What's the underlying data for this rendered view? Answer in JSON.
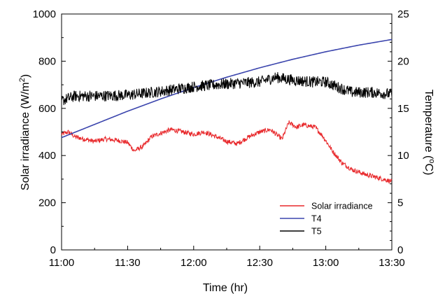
{
  "chart_data": {
    "type": "line",
    "xlabel": "Time (hr)",
    "ylabel_left": "Solar irradiance (W/m",
    "ylabel_left_sup": "2",
    "ylabel_left_close": ")",
    "ylabel_right": "Temperature (",
    "ylabel_right_sup": "o",
    "ylabel_right_close": "C)",
    "x_ticks": [
      "11:00",
      "11:30",
      "12:00",
      "12:30",
      "13:00",
      "13:30"
    ],
    "x_tick_hours": [
      11.0,
      11.5,
      12.0,
      12.5,
      13.0,
      13.5
    ],
    "xlim_hours": [
      11.0,
      13.5
    ],
    "ylim_left": [
      0,
      1000
    ],
    "y_ticks_left": [
      "0",
      "200",
      "400",
      "600",
      "800",
      "1000"
    ],
    "ylim_right": [
      0,
      25
    ],
    "y_ticks_right": [
      "0",
      "5",
      "10",
      "15",
      "20",
      "25"
    ],
    "grid": false,
    "legend_position": "bottom-right",
    "series": [
      {
        "name": "Solar irradiance",
        "axis": "left",
        "color": "#e8282b",
        "noise": 10,
        "x": [
          11.0,
          11.05,
          11.1,
          11.17,
          11.25,
          11.33,
          11.42,
          11.5,
          11.55,
          11.62,
          11.68,
          11.75,
          11.83,
          11.92,
          12.0,
          12.08,
          12.17,
          12.25,
          12.33,
          12.42,
          12.5,
          12.58,
          12.67,
          12.72,
          12.78,
          12.83,
          12.92,
          12.98,
          13.05,
          13.12,
          13.2,
          13.3,
          13.4,
          13.5
        ],
        "y": [
          490,
          500,
          480,
          470,
          460,
          470,
          465,
          455,
          420,
          440,
          480,
          495,
          510,
          500,
          490,
          500,
          480,
          460,
          450,
          480,
          500,
          510,
          470,
          540,
          520,
          530,
          520,
          480,
          420,
          370,
          340,
          320,
          305,
          290
        ]
      },
      {
        "name": "T4",
        "axis": "right",
        "color": "#3b45ad",
        "noise": 0,
        "x": [
          11.0,
          11.25,
          11.5,
          11.75,
          12.0,
          12.25,
          12.5,
          12.75,
          13.0,
          13.25,
          13.5
        ],
        "y": [
          11.9,
          13.3,
          14.7,
          16.0,
          17.2,
          18.3,
          19.3,
          20.2,
          21.0,
          21.7,
          22.3
        ]
      },
      {
        "name": "T5",
        "axis": "right",
        "color": "#000000",
        "noise": 0.6,
        "x": [
          11.0,
          11.1,
          11.25,
          11.5,
          11.75,
          12.0,
          12.25,
          12.5,
          12.62,
          12.75,
          12.9,
          13.0,
          13.1,
          13.2,
          13.35,
          13.5
        ],
        "y": [
          15.8,
          16.3,
          16.3,
          16.4,
          16.8,
          17.3,
          17.6,
          17.8,
          18.3,
          18.0,
          17.8,
          17.8,
          17.2,
          16.7,
          16.7,
          16.5
        ]
      }
    ]
  }
}
